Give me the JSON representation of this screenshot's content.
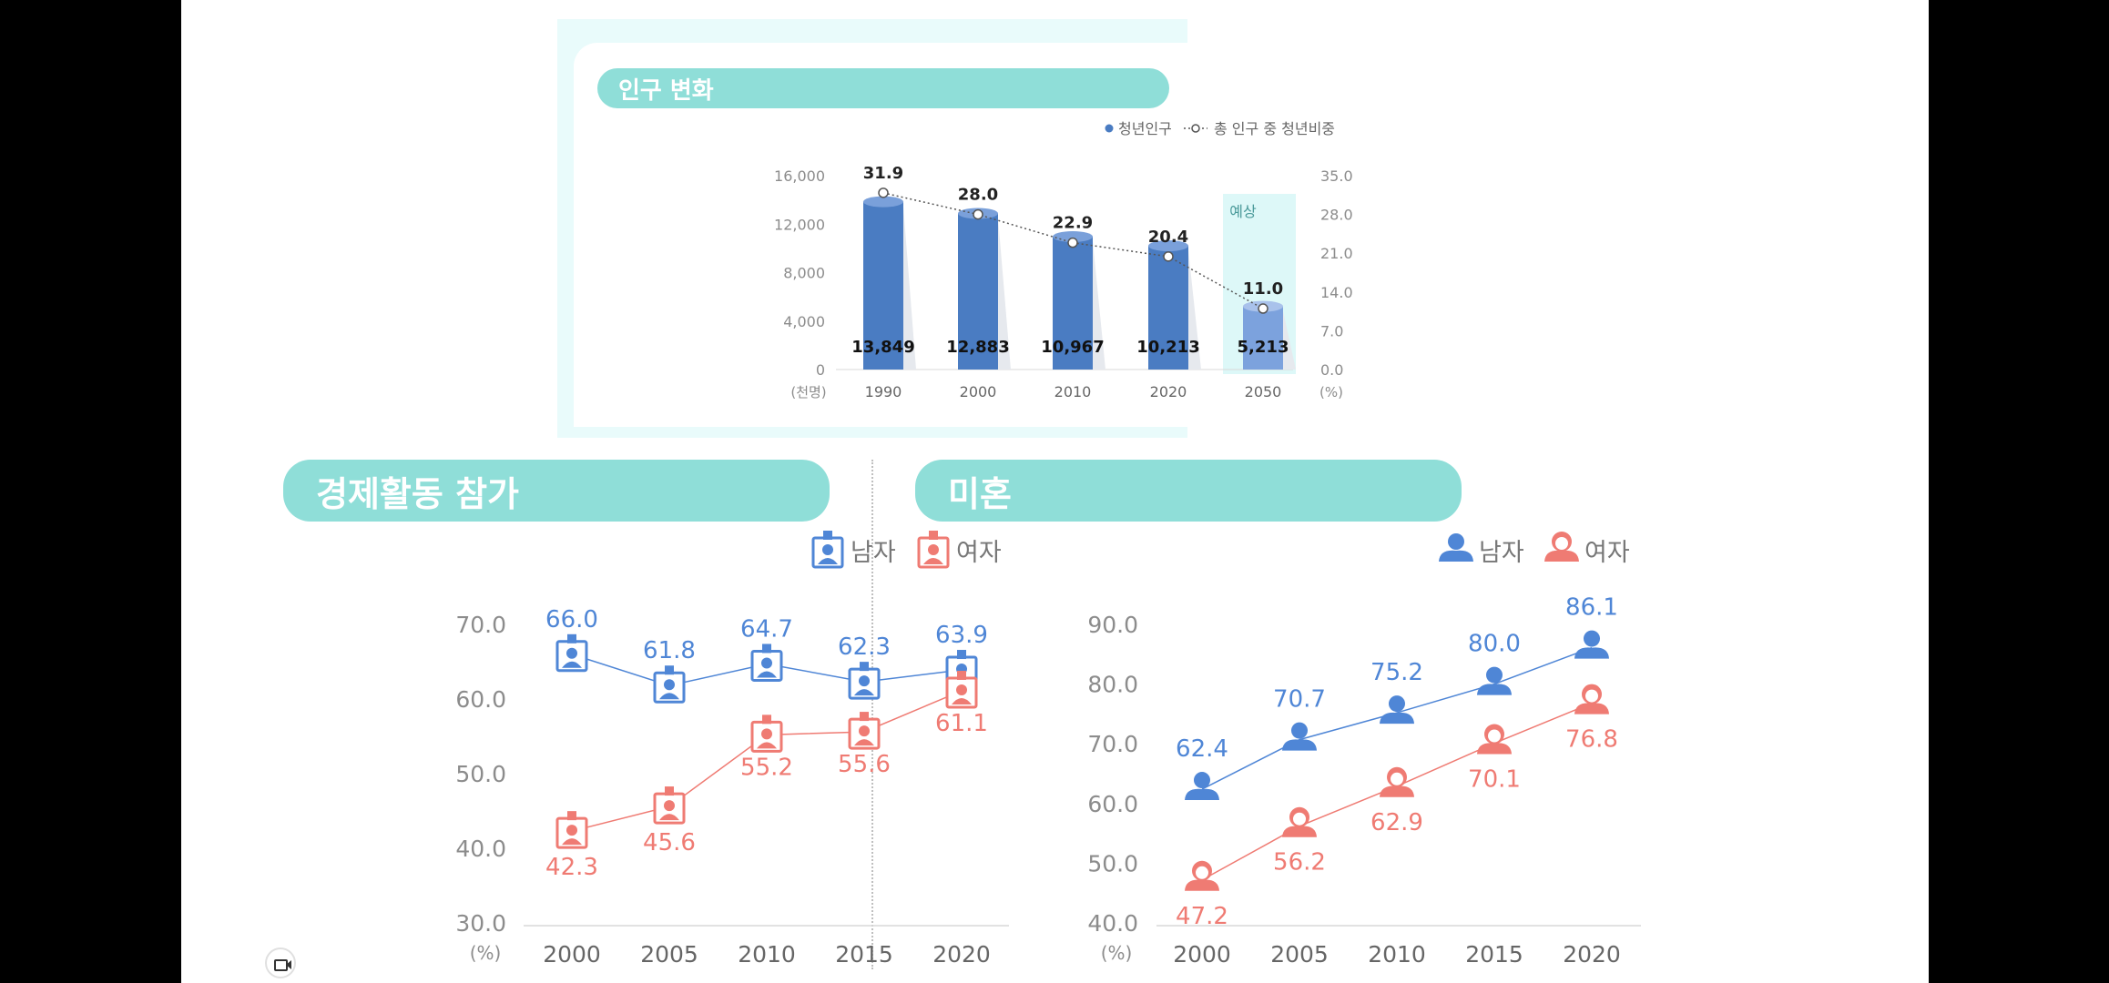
{
  "colors": {
    "male": "#4f86d6",
    "female": "#ef7b73",
    "bar": "#4a7cc2",
    "bar_forecast": "#7ca2dd",
    "title_bar": "#8fded8",
    "forecast_bg": "#ddf8f8"
  },
  "icons": {
    "econ_male": "id-badge-male-icon",
    "econ_female": "id-badge-female-icon",
    "unmarried_male": "person-male-icon",
    "unmarried_female": "person-female-icon"
  },
  "chart_data": [
    {
      "type": "bar",
      "title": "인구 변화",
      "categories": [
        "1990",
        "2000",
        "2010",
        "2020",
        "2050"
      ],
      "series": [
        {
          "name": "청년인구",
          "type": "bar",
          "axis": "left",
          "values": [
            13849,
            12883,
            10967,
            10213,
            5213
          ],
          "labels": [
            "13,849",
            "12,883",
            "10,967",
            "10,213",
            "5,213"
          ]
        },
        {
          "name": "총 인구 중 청년비중",
          "type": "line",
          "axis": "right",
          "values": [
            31.9,
            28.0,
            22.9,
            20.4,
            11.0
          ],
          "labels": [
            "31.9",
            "28.0",
            "22.9",
            "20.4",
            "11.0"
          ]
        }
      ],
      "y_left": {
        "unit": "(천명)",
        "ticks": [
          "0",
          "4,000",
          "8,000",
          "12,000",
          "16,000"
        ],
        "range": [
          0,
          16000
        ]
      },
      "y_right": {
        "unit": "(%)",
        "ticks": [
          "0.0",
          "7.0",
          "14.0",
          "21.0",
          "28.0",
          "35.0"
        ],
        "range": [
          0,
          35
        ]
      },
      "forecast_label": "예상",
      "forecast_category": "2050",
      "legend": "top-right",
      "grid": false
    },
    {
      "type": "line",
      "title": "경제활동 참가",
      "categories": [
        "2000",
        "2005",
        "2010",
        "2015",
        "2020"
      ],
      "series": [
        {
          "name": "남자",
          "values": [
            66.0,
            61.8,
            64.7,
            62.3,
            63.9
          ],
          "labels": [
            "66.0",
            "61.8",
            "64.7",
            "62.3",
            "63.9"
          ]
        },
        {
          "name": "여자",
          "values": [
            42.3,
            45.6,
            55.2,
            55.6,
            61.1
          ],
          "labels": [
            "42.3",
            "45.6",
            "55.2",
            "55.6",
            "61.1"
          ]
        }
      ],
      "y_unit": "(%)",
      "y_ticks": [
        "30.0",
        "40.0",
        "50.0",
        "60.0",
        "70.0"
      ],
      "ylim": [
        30,
        70
      ],
      "legend": "top-right",
      "grid": false
    },
    {
      "type": "line",
      "title": "미혼",
      "categories": [
        "2000",
        "2005",
        "2010",
        "2015",
        "2020"
      ],
      "series": [
        {
          "name": "남자",
          "values": [
            62.4,
            70.7,
            75.2,
            80.0,
            86.1
          ],
          "labels": [
            "62.4",
            "70.7",
            "75.2",
            "80.0",
            "86.1"
          ]
        },
        {
          "name": "여자",
          "values": [
            47.2,
            56.2,
            62.9,
            70.1,
            76.8
          ],
          "labels": [
            "47.2",
            "56.2",
            "62.9",
            "70.1",
            "76.8"
          ]
        }
      ],
      "y_unit": "(%)",
      "y_ticks": [
        "40.0",
        "50.0",
        "60.0",
        "70.0",
        "80.0",
        "90.0"
      ],
      "ylim": [
        40,
        90
      ],
      "legend": "top-right",
      "grid": false
    }
  ]
}
